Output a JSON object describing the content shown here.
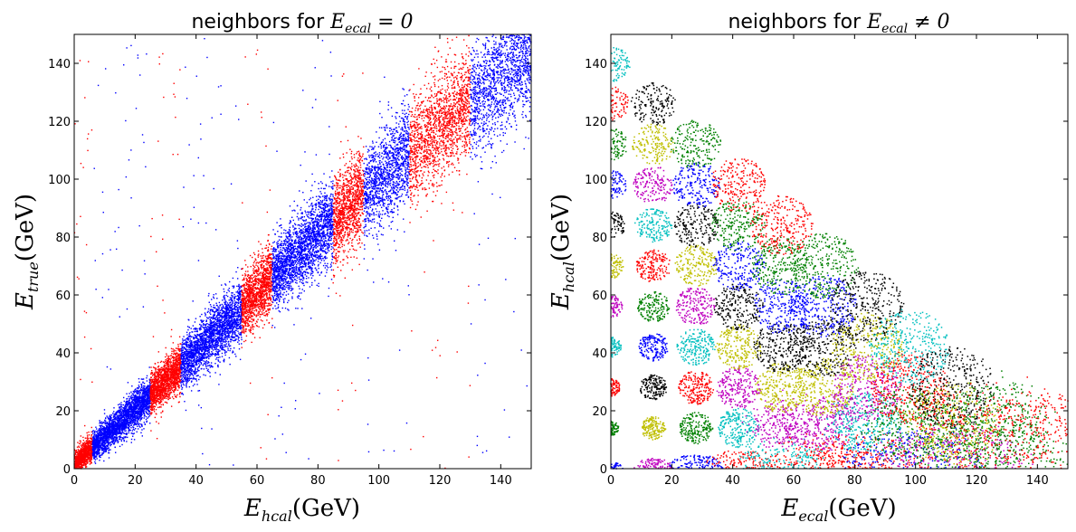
{
  "chart_data": [
    {
      "type": "scatter",
      "title": "neighbors for E_ecal = 0",
      "title_parts": {
        "prefix": "neighbors for ",
        "var": "E",
        "sub": "ecal",
        "rel": " = 0"
      },
      "xlabel": {
        "var": "E",
        "sub": "hcal",
        "unit": "(GeV)"
      },
      "ylabel": {
        "var": "E",
        "sub": "true",
        "unit": "(GeV)"
      },
      "xlim": [
        0,
        150
      ],
      "ylim": [
        0,
        150
      ],
      "xticks": [
        "0",
        "20",
        "40",
        "60",
        "80",
        "100",
        "120",
        "140"
      ],
      "yticks": [
        "0",
        "20",
        "40",
        "60",
        "80",
        "100",
        "120",
        "140"
      ],
      "grid": false,
      "colors": {
        "blue": "#0000ff",
        "red": "#ff0000"
      },
      "series": [
        {
          "color": "#ff0000",
          "x_range": [
            0,
            6
          ],
          "y_center_slope": 0.95,
          "count": 900
        },
        {
          "color": "#0000ff",
          "x_range": [
            6,
            25
          ],
          "y_center_slope": 0.95,
          "count": 2600
        },
        {
          "color": "#ff0000",
          "x_range": [
            25,
            35
          ],
          "y_center_slope": 0.97,
          "count": 1500
        },
        {
          "color": "#0000ff",
          "x_range": [
            35,
            55
          ],
          "y_center_slope": 0.98,
          "count": 2400
        },
        {
          "color": "#ff0000",
          "x_range": [
            55,
            65
          ],
          "y_center_slope": 0.99,
          "count": 1300
        },
        {
          "color": "#0000ff",
          "x_range": [
            65,
            85
          ],
          "y_center_slope": 0.99,
          "count": 2300
        },
        {
          "color": "#ff0000",
          "x_range": [
            85,
            95
          ],
          "y_center_slope": 0.99,
          "count": 1100
        },
        {
          "color": "#0000ff",
          "x_range": [
            95,
            110
          ],
          "y_center_slope": 0.98,
          "count": 1300
        },
        {
          "color": "#ff0000",
          "x_range": [
            110,
            130
          ],
          "y_center_slope": 0.97,
          "count": 1600
        },
        {
          "color": "#0000ff",
          "x_range": [
            130,
            150
          ],
          "y_center_slope": 0.96,
          "count": 1500
        }
      ]
    },
    {
      "type": "scatter",
      "title": "neighbors for E_ecal ≠ 0",
      "title_parts": {
        "prefix": "neighbors for ",
        "var": "E",
        "sub": "ecal",
        "rel": " ≠ 0"
      },
      "xlabel": {
        "var": "E",
        "sub": "ecal",
        "unit": "(GeV)"
      },
      "ylabel": {
        "var": "E",
        "sub": "hcal",
        "unit": "(GeV)"
      },
      "xlim": [
        0,
        150
      ],
      "ylim": [
        0,
        150
      ],
      "xticks": [
        "0",
        "20",
        "40",
        "60",
        "80",
        "100",
        "120",
        "140"
      ],
      "yticks": [
        "0",
        "20",
        "40",
        "60",
        "80",
        "100",
        "120",
        "140"
      ],
      "grid": false,
      "palette": [
        "#0000ff",
        "#008000",
        "#ff0000",
        "#00bfbf",
        "#bf00bf",
        "#bfbf00",
        "#000000"
      ],
      "clusters": [
        {
          "x": 0,
          "y": 0,
          "c": 0
        },
        {
          "x": 0,
          "y": 14,
          "c": 1
        },
        {
          "x": 0,
          "y": 28,
          "c": 2
        },
        {
          "x": 0,
          "y": 42,
          "c": 3
        },
        {
          "x": 0,
          "y": 56,
          "c": 4
        },
        {
          "x": 0,
          "y": 70,
          "c": 5
        },
        {
          "x": 0,
          "y": 84,
          "c": 6
        },
        {
          "x": 0,
          "y": 98,
          "c": 0
        },
        {
          "x": 0,
          "y": 112,
          "c": 1
        },
        {
          "x": 0,
          "y": 126,
          "c": 2
        },
        {
          "x": 0,
          "y": 140,
          "c": 3
        },
        {
          "x": 14,
          "y": 0,
          "c": 4
        },
        {
          "x": 14,
          "y": 14,
          "c": 5
        },
        {
          "x": 14,
          "y": 28,
          "c": 6
        },
        {
          "x": 14,
          "y": 42,
          "c": 0
        },
        {
          "x": 14,
          "y": 56,
          "c": 1
        },
        {
          "x": 14,
          "y": 70,
          "c": 2
        },
        {
          "x": 14,
          "y": 84,
          "c": 3
        },
        {
          "x": 14,
          "y": 98,
          "c": 4
        },
        {
          "x": 14,
          "y": 112,
          "c": 5
        },
        {
          "x": 14,
          "y": 126,
          "c": 6
        },
        {
          "x": 28,
          "y": 0,
          "c": 0
        },
        {
          "x": 28,
          "y": 14,
          "c": 1
        },
        {
          "x": 28,
          "y": 28,
          "c": 2
        },
        {
          "x": 28,
          "y": 42,
          "c": 3
        },
        {
          "x": 28,
          "y": 56,
          "c": 4
        },
        {
          "x": 28,
          "y": 70,
          "c": 5
        },
        {
          "x": 28,
          "y": 84,
          "c": 6
        },
        {
          "x": 28,
          "y": 98,
          "c": 0
        },
        {
          "x": 28,
          "y": 112,
          "c": 1
        },
        {
          "x": 42,
          "y": 0,
          "c": 2
        },
        {
          "x": 42,
          "y": 14,
          "c": 3
        },
        {
          "x": 42,
          "y": 28,
          "c": 4
        },
        {
          "x": 42,
          "y": 42,
          "c": 5
        },
        {
          "x": 42,
          "y": 56,
          "c": 6
        },
        {
          "x": 42,
          "y": 70,
          "c": 0
        },
        {
          "x": 42,
          "y": 84,
          "c": 1
        },
        {
          "x": 42,
          "y": 98,
          "c": 2
        },
        {
          "x": 56,
          "y": 0,
          "c": 3
        },
        {
          "x": 56,
          "y": 14,
          "c": 4
        },
        {
          "x": 56,
          "y": 28,
          "c": 5
        },
        {
          "x": 56,
          "y": 42,
          "c": 6
        },
        {
          "x": 56,
          "y": 56,
          "c": 0
        },
        {
          "x": 56,
          "y": 70,
          "c": 1
        },
        {
          "x": 56,
          "y": 84,
          "c": 2
        },
        {
          "x": 70,
          "y": 0,
          "c": 2
        },
        {
          "x": 70,
          "y": 14,
          "c": 4
        },
        {
          "x": 70,
          "y": 28,
          "c": 5
        },
        {
          "x": 70,
          "y": 42,
          "c": 6
        },
        {
          "x": 70,
          "y": 56,
          "c": 0
        },
        {
          "x": 70,
          "y": 70,
          "c": 1
        },
        {
          "x": 84,
          "y": 0,
          "c": 2
        },
        {
          "x": 84,
          "y": 14,
          "c": 3
        },
        {
          "x": 84,
          "y": 28,
          "c": 4
        },
        {
          "x": 84,
          "y": 42,
          "c": 5
        },
        {
          "x": 84,
          "y": 56,
          "c": 6
        },
        {
          "x": 98,
          "y": 0,
          "c": 0
        },
        {
          "x": 98,
          "y": 14,
          "c": 1
        },
        {
          "x": 98,
          "y": 28,
          "c": 2
        },
        {
          "x": 98,
          "y": 42,
          "c": 3
        },
        {
          "x": 112,
          "y": 0,
          "c": 4
        },
        {
          "x": 112,
          "y": 14,
          "c": 5
        },
        {
          "x": 112,
          "y": 28,
          "c": 6
        },
        {
          "x": 126,
          "y": 0,
          "c": 1
        },
        {
          "x": 126,
          "y": 14,
          "c": 1
        },
        {
          "x": 140,
          "y": 0,
          "c": 2
        }
      ]
    }
  ]
}
